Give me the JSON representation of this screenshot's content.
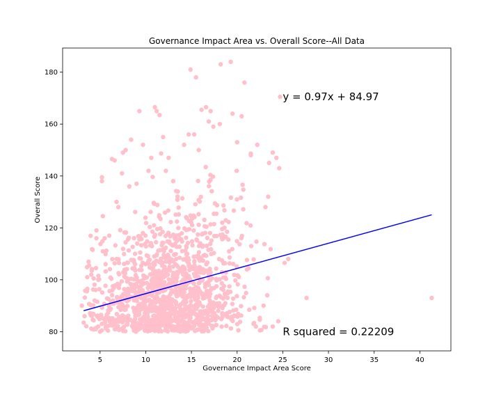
{
  "chart_data": {
    "type": "scatter",
    "title": "Governance Impact Area vs. Overall Score--All Data",
    "xlabel": "Governance Impact Area Score",
    "ylabel": "Overall Score",
    "xlim": [
      0.9,
      43.4
    ],
    "ylim": [
      72.6,
      189.3
    ],
    "xticks": [
      5,
      10,
      15,
      20,
      25,
      30,
      35,
      40
    ],
    "yticks": [
      80,
      100,
      120,
      140,
      160,
      180
    ],
    "grid": false,
    "point_color": "#ffc0cb",
    "line_color": "#0000ff",
    "regression": {
      "slope": 0.97,
      "intercept": 84.97,
      "x_range": [
        3.2,
        41.3
      ]
    },
    "annotations": [
      {
        "text": "y = 0.97x + 84.97",
        "x": 25.0,
        "y": 170.5
      },
      {
        "text": "R squared = 0.22209",
        "x": 25.0,
        "y": 80.0
      }
    ],
    "series": [
      {
        "points": [
          [
            3.0,
            90
          ],
          [
            3.2,
            83.5
          ],
          [
            3.3,
            86
          ],
          [
            3.6,
            101
          ],
          [
            3.8,
            105.5
          ],
          [
            4.1,
            86
          ],
          [
            4.3,
            100.5
          ],
          [
            4.4,
            92
          ],
          [
            4.6,
            116
          ],
          [
            4.6,
            119
          ],
          [
            4.8,
            100
          ],
          [
            4.8,
            82
          ],
          [
            5.0,
            80
          ],
          [
            5.2,
            139.5
          ],
          [
            5.2,
            138
          ],
          [
            5.3,
            124.5
          ],
          [
            5.5,
            116
          ],
          [
            5.3,
            111
          ],
          [
            5.6,
            106
          ],
          [
            5.2,
            83
          ],
          [
            6.0,
            117
          ],
          [
            6.3,
            146.5
          ],
          [
            6.6,
            146
          ],
          [
            6.8,
            130
          ],
          [
            7.0,
            128
          ],
          [
            7.4,
            141
          ],
          [
            7.5,
            149
          ],
          [
            7.8,
            150
          ],
          [
            8.2,
            136
          ],
          [
            8.4,
            154
          ],
          [
            9.0,
            137
          ],
          [
            9.3,
            165
          ],
          [
            9.7,
            152
          ],
          [
            10.3,
            142
          ],
          [
            10.6,
            147
          ],
          [
            11.0,
            166.5
          ],
          [
            11.2,
            165
          ],
          [
            11.5,
            163.5
          ],
          [
            11.9,
            155
          ],
          [
            12.5,
            147
          ],
          [
            12.2,
            142
          ],
          [
            13.0,
            138
          ],
          [
            13.5,
            134
          ],
          [
            14.2,
            152
          ],
          [
            14.7,
            156
          ],
          [
            15.3,
            156
          ],
          [
            15.8,
            150
          ],
          [
            14.9,
            181
          ],
          [
            15.5,
            178
          ],
          [
            16.1,
            165.5
          ],
          [
            16.6,
            166.5
          ],
          [
            17.1,
            165
          ],
          [
            16.9,
            161
          ],
          [
            17.4,
            159
          ],
          [
            18.1,
            160
          ],
          [
            18.2,
            183
          ],
          [
            19.3,
            184
          ],
          [
            19.5,
            164
          ],
          [
            20.5,
            163
          ],
          [
            20.0,
            153
          ],
          [
            20.8,
            176
          ],
          [
            21.5,
            148
          ],
          [
            22.2,
            152
          ],
          [
            23.5,
            145
          ],
          [
            23.9,
            149
          ],
          [
            24.3,
            147
          ],
          [
            24.6,
            143
          ],
          [
            24.7,
            170.5
          ],
          [
            23.1,
            128
          ],
          [
            23.4,
            132
          ],
          [
            25.2,
            106.5
          ],
          [
            25.6,
            108
          ],
          [
            27.6,
            93
          ],
          [
            41.3,
            93
          ],
          [
            24.5,
            84
          ],
          [
            23.9,
            82
          ],
          [
            22.5,
            80.5
          ],
          [
            21.8,
            83
          ],
          [
            22.9,
            90
          ],
          [
            23.3,
            94
          ]
        ]
      }
    ]
  }
}
